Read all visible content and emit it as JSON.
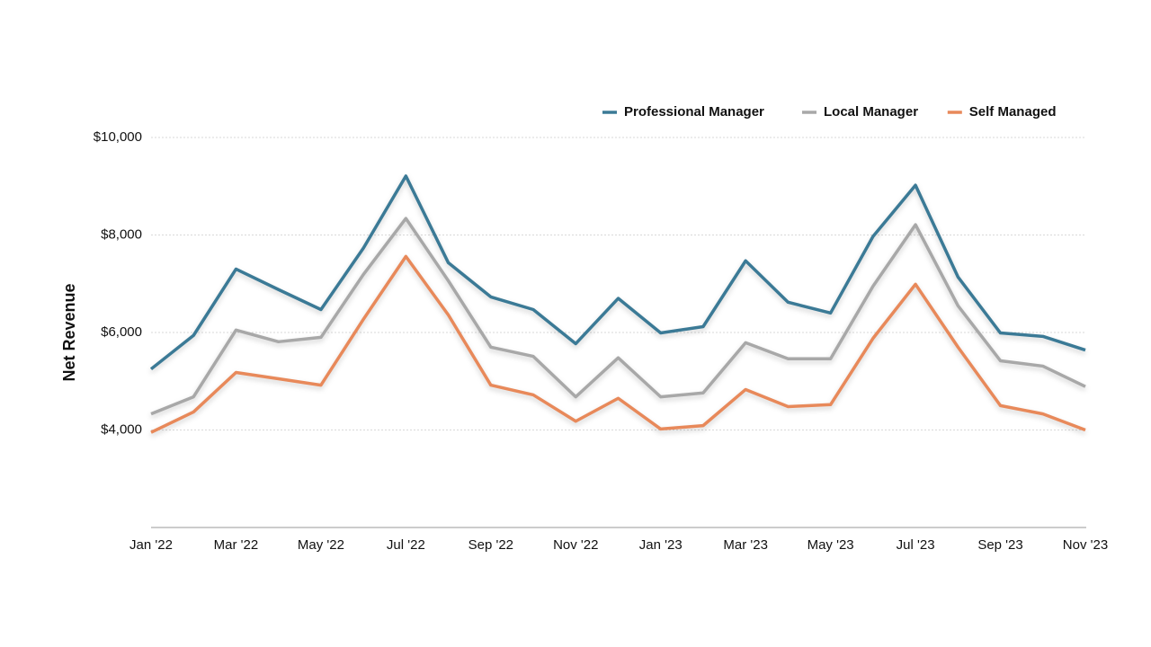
{
  "chart_data": {
    "type": "line",
    "y_label": "Net Revenue",
    "categories": [
      "Jan '22",
      null,
      "Mar '22",
      null,
      "May '22",
      null,
      "Jul '22",
      null,
      "Sep '22",
      null,
      "Nov '22",
      null,
      "Jan '23",
      null,
      "Mar '23",
      null,
      "May '23",
      null,
      "Jul '23",
      null,
      "Sep '23",
      null,
      "Nov '23"
    ],
    "ylim": [
      2000,
      10000
    ],
    "yticks": [
      {
        "value": 4000,
        "label": "$4,000"
      },
      {
        "value": 6000,
        "label": "$6,000"
      },
      {
        "value": 8000,
        "label": "$8,000"
      },
      {
        "value": 10000,
        "label": "$10,000"
      }
    ],
    "grid": true,
    "legend": "top-right",
    "series": [
      {
        "name": "Professional Manager",
        "color": "#3b7a96",
        "values": [
          5250,
          5940,
          7300,
          6880,
          6470,
          7730,
          9210,
          7430,
          6730,
          6470,
          5770,
          6700,
          5990,
          6120,
          7470,
          6620,
          6400,
          7970,
          9020,
          7140,
          5990,
          5920,
          5640
        ]
      },
      {
        "name": "Local Manager",
        "color": "#a8a8a8",
        "values": [
          4330,
          4680,
          6050,
          5810,
          5900,
          7190,
          8340,
          7060,
          5700,
          5510,
          4680,
          5480,
          4680,
          4760,
          5790,
          5460,
          5460,
          6950,
          8210,
          6550,
          5420,
          5310,
          4890
        ]
      },
      {
        "name": "Self Managed",
        "color": "#e8895a",
        "values": [
          3950,
          4370,
          5180,
          5050,
          4920,
          6270,
          7560,
          6360,
          4920,
          4720,
          4180,
          4650,
          4020,
          4090,
          4830,
          4480,
          4520,
          5880,
          6990,
          5700,
          4500,
          4330,
          4000
        ]
      }
    ]
  }
}
